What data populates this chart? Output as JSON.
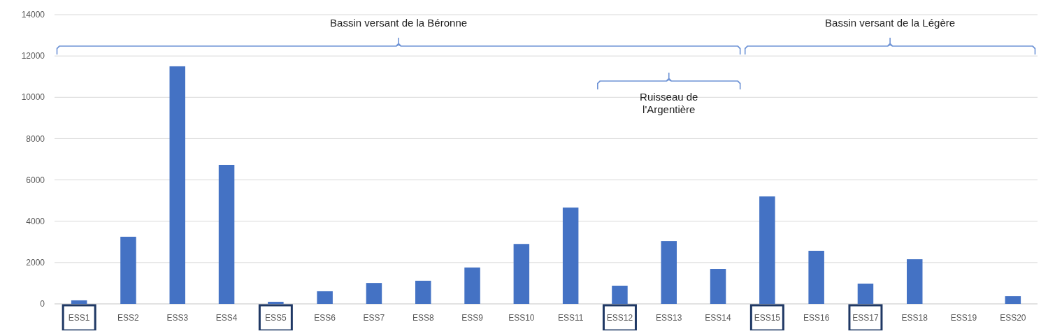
{
  "chart_data": {
    "type": "bar",
    "categories": [
      "ESS1",
      "ESS2",
      "ESS3",
      "ESS4",
      "ESS5",
      "ESS6",
      "ESS7",
      "ESS8",
      "ESS9",
      "ESS10",
      "ESS11",
      "ESS12",
      "ESS13",
      "ESS14",
      "ESS15",
      "ESS16",
      "ESS17",
      "ESS18",
      "ESS19",
      "ESS20"
    ],
    "values": [
      170,
      3250,
      11500,
      6730,
      100,
      610,
      1010,
      1120,
      1760,
      2900,
      4660,
      880,
      3040,
      1690,
      5200,
      2570,
      980,
      2160,
      0,
      370
    ],
    "color": "#4472c4",
    "ylim": [
      0,
      14000
    ],
    "yticks": [
      0,
      2000,
      4000,
      6000,
      8000,
      10000,
      12000,
      14000
    ],
    "grid": "y",
    "annotations": [
      "Bassin versant de la Béronne",
      "Ruisseau de l'Argentière",
      "Bassin versant de la Légère"
    ]
  }
}
